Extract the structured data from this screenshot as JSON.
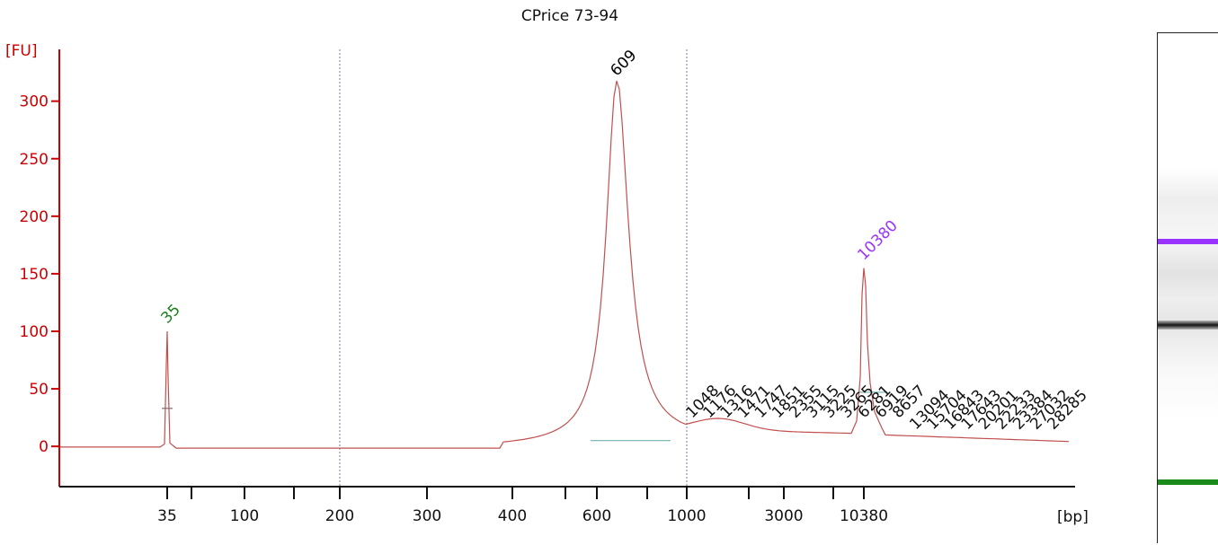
{
  "chart_data": {
    "type": "line",
    "title": "CPrice 73-94",
    "ylabel": "[FU]",
    "xlabel": "[bp]",
    "ylim": [
      -35,
      345
    ],
    "y_ticks": [
      0,
      50,
      100,
      150,
      200,
      250,
      300
    ],
    "x_tick_labels": [
      "35",
      "100",
      "200",
      "300",
      "400",
      "600",
      "1000",
      "3000",
      "10380"
    ],
    "grid": "vertical dotted lines at 200 and 1000",
    "series": [
      {
        "color": "#c0504d",
        "x": [
          "35",
          "609",
          "1000",
          "10380",
          "28285"
        ],
        "y": [
          100,
          315,
          18,
          155,
          3
        ]
      }
    ],
    "peaks": [
      {
        "label": "35",
        "value": 100,
        "color": "#1a7f1a"
      },
      {
        "label": "609",
        "value": 315,
        "color": "#000000"
      },
      {
        "label": "10380",
        "value": 155,
        "color": "#9a33ff"
      }
    ],
    "peak_labels": [
      "1048",
      "1176",
      "1316",
      "1471",
      "1747",
      "1851",
      "2355",
      "3115",
      "3225",
      "3265",
      "6281",
      "6919",
      "8657",
      "13094",
      "15704",
      "16843",
      "17643",
      "20201",
      "22233",
      "23384",
      "27032",
      "28285"
    ],
    "lower_marker_bp": "35",
    "upper_marker_bp": "10380",
    "colors": {
      "axis": "#cc0000",
      "trace": "#c0504d",
      "baseline": "#5aa8a0",
      "grid": "#7a7ab0",
      "lower_marker": "#1a7f1a",
      "upper_marker": "#9a33ff"
    }
  },
  "gel": {
    "upper_marker_color": "#9a33ff",
    "lower_marker_color": "#1a8a1a",
    "main_band_color": "#222222"
  }
}
